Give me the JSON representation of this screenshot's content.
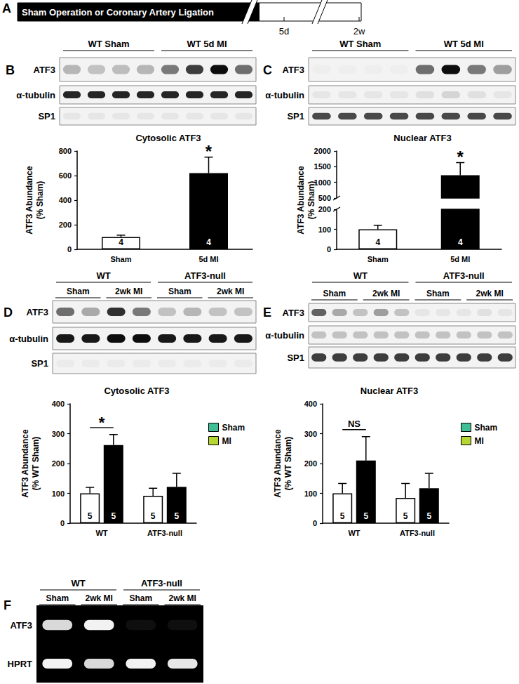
{
  "timeline": {
    "panel": "A",
    "bar_text": "Sham Operation or Coronary Artery Ligation",
    "ticks": [
      "5d",
      "2w"
    ]
  },
  "blots": [
    {
      "panel": "B",
      "kind": "western",
      "groups": [
        {
          "label": "WT Sham",
          "lanes": 4
        },
        {
          "label": "WT 5d MI",
          "lanes": 4
        }
      ],
      "rows": [
        {
          "label": "ATF3",
          "bands": [
            0.25,
            0.2,
            0.22,
            0.25,
            0.5,
            0.75,
            0.95,
            0.55
          ]
        },
        {
          "label": "α-tubulin",
          "bands": [
            0.85,
            0.85,
            0.85,
            0.85,
            0.85,
            0.85,
            0.85,
            0.85
          ]
        },
        {
          "label": "SP1",
          "bands": [
            0.05,
            0.05,
            0.05,
            0.05,
            0.05,
            0.05,
            0.05,
            0.05
          ]
        }
      ]
    },
    {
      "panel": "C",
      "kind": "western",
      "groups": [
        {
          "label": "WT Sham",
          "lanes": 4
        },
        {
          "label": "WT 5d MI",
          "lanes": 4
        }
      ],
      "rows": [
        {
          "label": "ATF3",
          "bands": [
            0.02,
            0.02,
            0.02,
            0.02,
            0.55,
            0.95,
            0.5,
            0.35
          ]
        },
        {
          "label": "α-tubulin",
          "bands": [
            0.05,
            0.05,
            0.05,
            0.05,
            0.08,
            0.12,
            0.08,
            0.05
          ]
        },
        {
          "label": "SP1",
          "bands": [
            0.7,
            0.7,
            0.7,
            0.7,
            0.7,
            0.7,
            0.7,
            0.7
          ]
        }
      ]
    },
    {
      "panel": "D",
      "kind": "western",
      "groups": [
        {
          "label": "WT",
          "lanes": 4,
          "sublabels": [
            "Sham",
            "2wk MI"
          ]
        },
        {
          "label": "ATF3-null",
          "lanes": 4,
          "sublabels": [
            "Sham",
            "2wk MI"
          ]
        }
      ],
      "rows": [
        {
          "label": "ATF3",
          "bands": [
            0.55,
            0.3,
            0.8,
            0.5,
            0.2,
            0.25,
            0.2,
            0.2
          ]
        },
        {
          "label": "α-tubulin",
          "bands": [
            0.9,
            0.9,
            0.95,
            0.95,
            0.9,
            0.9,
            0.9,
            0.9
          ]
        },
        {
          "label": "SP1",
          "bands": [
            0.03,
            0.03,
            0.03,
            0.03,
            0.03,
            0.03,
            0.03,
            0.03
          ]
        }
      ]
    },
    {
      "panel": "E",
      "kind": "western",
      "groups": [
        {
          "label": "WT",
          "lanes": 5,
          "sublabels": [
            "Sham",
            "2wk MI"
          ]
        },
        {
          "label": "ATF3-null",
          "lanes": 5,
          "sublabels": [
            "Sham",
            "2wk MI"
          ]
        }
      ],
      "rows": [
        {
          "label": "ATF3",
          "bands": [
            0.6,
            0.3,
            0.2,
            0.35,
            0.2,
            0.05,
            0.05,
            0.05,
            0.08,
            0.05
          ]
        },
        {
          "label": "α-tubulin",
          "bands": [
            0.2,
            0.2,
            0.2,
            0.2,
            0.2,
            0.2,
            0.2,
            0.2,
            0.2,
            0.2
          ]
        },
        {
          "label": "SP1",
          "bands": [
            0.75,
            0.75,
            0.75,
            0.75,
            0.75,
            0.75,
            0.75,
            0.75,
            0.75,
            0.75
          ]
        }
      ]
    },
    {
      "panel": "F",
      "kind": "gel",
      "groups": [
        {
          "label": "WT",
          "lanes": 2,
          "sublabels": [
            "Sham",
            "2wk MI"
          ]
        },
        {
          "label": "ATF3-null",
          "lanes": 2,
          "sublabels": [
            "Sham",
            "2wk MI"
          ]
        }
      ],
      "rows": [
        {
          "label": "ATF3",
          "bands": [
            0.85,
            0.95,
            0.06,
            0.06
          ]
        },
        {
          "label": "HPRT",
          "bands": [
            0.95,
            0.85,
            0.95,
            0.9
          ]
        }
      ]
    }
  ],
  "chart_data": [
    {
      "panel": "B",
      "type": "bar",
      "title": "Cytosolic ATF3",
      "ylabel": "ATF3 Abundance\n(% Sham)",
      "categories": [
        "Sham",
        "5d MI"
      ],
      "values": [
        100,
        620
      ],
      "errors": [
        15,
        130
      ],
      "n": [
        4,
        4
      ],
      "colors": [
        "#ffffff",
        "#000000"
      ],
      "ylim": [
        0,
        800
      ],
      "yticks": [
        0,
        200,
        400,
        600,
        800
      ],
      "grid": false,
      "significance": [
        {
          "label": "*",
          "category": "5d MI"
        }
      ]
    },
    {
      "panel": "C",
      "type": "bar",
      "title": "Nuclear ATF3",
      "ylabel": "ATF3 Abundance\n(% Sham)",
      "categories": [
        "Sham",
        "5d MI"
      ],
      "values": [
        100,
        1230
      ],
      "errors": [
        20,
        400
      ],
      "n": [
        4,
        4
      ],
      "colors": [
        "#ffffff",
        "#000000"
      ],
      "ylim": [
        0,
        2000
      ],
      "y_break": [
        200,
        500
      ],
      "yticks": [
        0,
        100,
        200,
        500,
        1000,
        1500,
        2000
      ],
      "grid": false,
      "significance": [
        {
          "label": "*",
          "category": "5d MI"
        }
      ]
    },
    {
      "panel": "D",
      "type": "bar",
      "title": "Cytosolic ATF3",
      "ylabel": "ATF3 Abundance\n(% WT Sham)",
      "categories": [
        "WT",
        "ATF3-null"
      ],
      "series": [
        {
          "name": "Sham",
          "color": "#ffffff",
          "values": [
            100,
            92
          ],
          "errors": [
            20,
            25
          ],
          "n": [
            5,
            5
          ]
        },
        {
          "name": "MI",
          "color": "#000000",
          "values": [
            262,
            122
          ],
          "errors": [
            35,
            45
          ],
          "n": [
            5,
            5
          ]
        }
      ],
      "ylim": [
        0,
        400
      ],
      "yticks": [
        0,
        100,
        200,
        300,
        400
      ],
      "legend": "top-right",
      "grid": false,
      "significance": [
        {
          "label": "*",
          "category": "WT",
          "between": [
            "Sham",
            "MI"
          ]
        }
      ]
    },
    {
      "panel": "E",
      "type": "bar",
      "title": "Nuclear ATF3",
      "ylabel": "ATF3 Abundance\n(% WT Sham)",
      "categories": [
        "WT",
        "ATF3-null"
      ],
      "series": [
        {
          "name": "Sham",
          "color": "#ffffff",
          "values": [
            100,
            85
          ],
          "errors": [
            33,
            48
          ],
          "n": [
            5,
            5
          ]
        },
        {
          "name": "MI",
          "color": "#000000",
          "values": [
            210,
            117
          ],
          "errors": [
            80,
            50
          ],
          "n": [
            5,
            5
          ]
        }
      ],
      "ylim": [
        0,
        400
      ],
      "yticks": [
        0,
        100,
        200,
        300,
        400
      ],
      "legend": "top-right",
      "grid": false,
      "significance": [
        {
          "label": "NS",
          "category": "WT",
          "between": [
            "Sham",
            "MI"
          ]
        }
      ]
    }
  ]
}
